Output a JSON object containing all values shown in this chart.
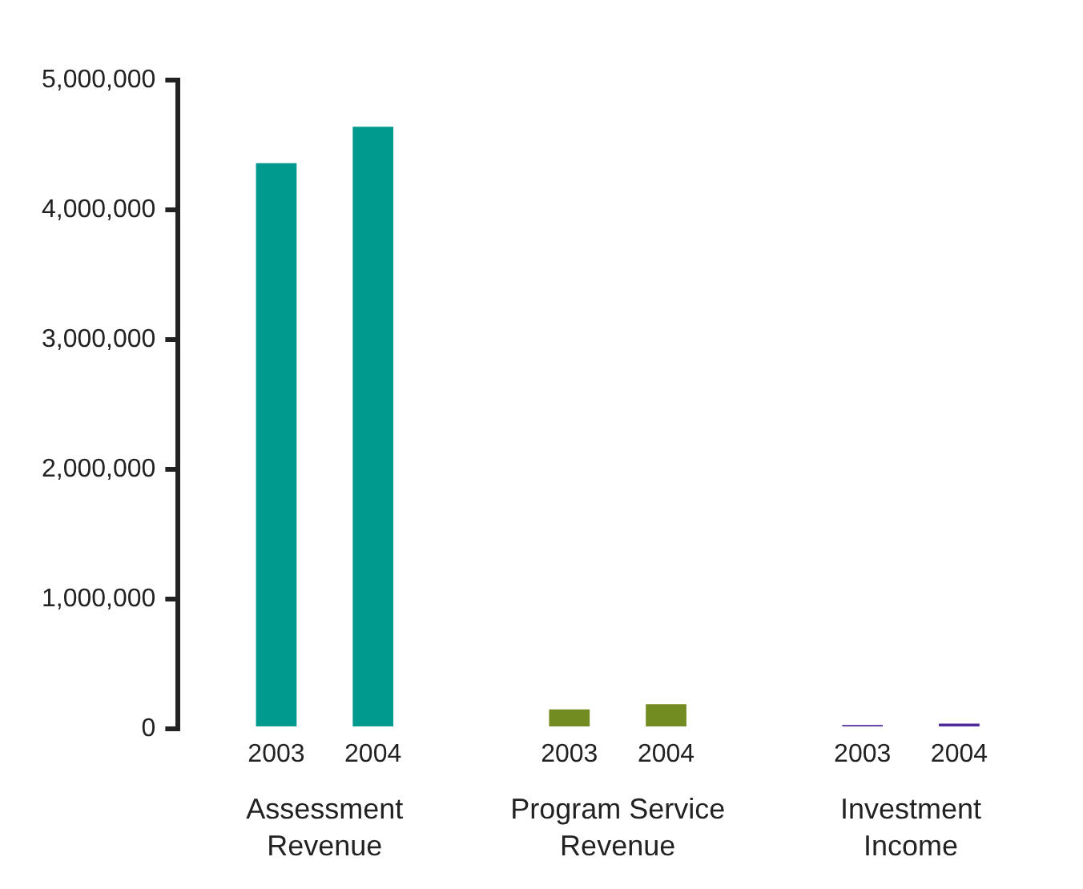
{
  "chart_data": {
    "type": "bar",
    "categories": [
      "Assessment Revenue",
      "Program Service Revenue",
      "Investment Income"
    ],
    "series": [
      {
        "name": "2003",
        "colors": [
          "#009a8f",
          "#728c22",
          "#4f2a9a"
        ],
        "values": [
          4360000,
          150000,
          30000
        ]
      },
      {
        "name": "2004",
        "colors": [
          "#009a8f",
          "#728c22",
          "#4f2a9a"
        ],
        "values": [
          4640000,
          190000,
          40000
        ]
      }
    ],
    "ylim": [
      0,
      5000000
    ],
    "yticks": [
      0,
      {
        "value": 1000000,
        "label": "1,000,000"
      },
      {
        "value": 2000000,
        "label": "2,000,000"
      },
      {
        "value": 3000000,
        "label": "3,000,000"
      },
      {
        "value": 4000000,
        "label": "4,000,000"
      },
      {
        "value": 5000000,
        "label": "5,000,000"
      }
    ],
    "grid": false,
    "legend": false
  }
}
